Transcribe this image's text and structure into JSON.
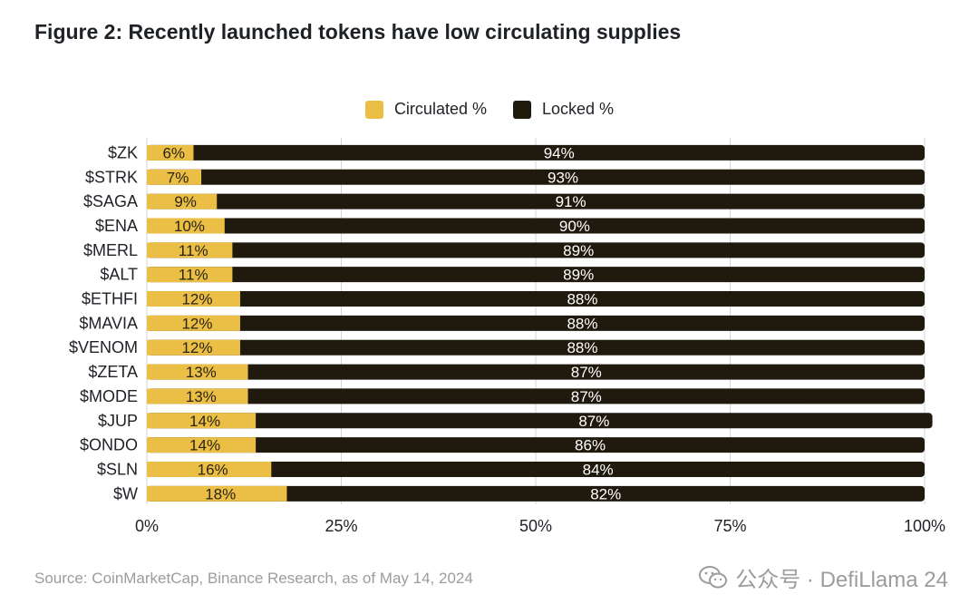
{
  "title": "Figure 2: Recently launched tokens have low circulating supplies",
  "colors": {
    "circulated": "#EBBF45",
    "locked": "#201A0E",
    "grid": "#D6D6D6",
    "text": "#1E2126"
  },
  "chart_data": {
    "type": "bar",
    "orientation": "horizontal",
    "stacked": true,
    "title": "Figure 2: Recently launched tokens have low circulating supplies",
    "categories": [
      "$ZK",
      "$STRK",
      "$SAGA",
      "$ENA",
      "$MERL",
      "$ALT",
      "$ETHFI",
      "$MAVIA",
      "$VENOM",
      "$ZETA",
      "$MODE",
      "$JUP",
      "$ONDO",
      "$SLN",
      "$W"
    ],
    "series": [
      {
        "name": "Circulated %",
        "values": [
          6,
          7,
          9,
          10,
          11,
          11,
          12,
          12,
          12,
          13,
          13,
          14,
          14,
          16,
          18
        ]
      },
      {
        "name": "Locked %",
        "values": [
          94,
          93,
          91,
          90,
          89,
          89,
          88,
          88,
          88,
          87,
          87,
          87,
          86,
          84,
          82
        ]
      }
    ],
    "data_labels": {
      "circulated": [
        "6%",
        "7%",
        "9%",
        "10%",
        "11%",
        "11%",
        "12%",
        "12%",
        "12%",
        "13%",
        "13%",
        "14%",
        "14%",
        "16%",
        "18%"
      ],
      "locked": [
        "94%",
        "93%",
        "91%",
        "90%",
        "89%",
        "89%",
        "88%",
        "88%",
        "88%",
        "87%",
        "87%",
        "87%",
        "86%",
        "84%",
        "82%"
      ]
    },
    "xlim": [
      0,
      100
    ],
    "x_ticks": [
      "0%",
      "25%",
      "50%",
      "75%",
      "100%"
    ],
    "x_tick_values": [
      0,
      25,
      50,
      75,
      100
    ],
    "grid": true,
    "legend": "top-center"
  },
  "source": "Source: CoinMarketCap, Binance Research, as of May 14, 2024",
  "watermark": "公众号 · DefiLlama 24",
  "watermark_icon": "wechat-icon"
}
